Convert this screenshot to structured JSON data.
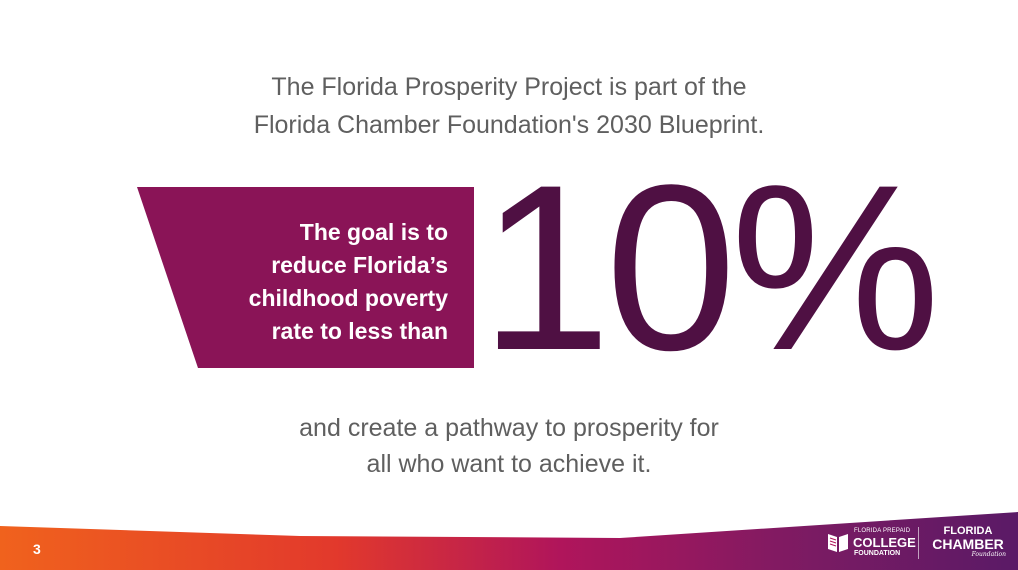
{
  "slide": {
    "intro_lines": [
      "The Florida Prosperity Project is part of the",
      "Florida Chamber Foundation's 2030 Blueprint."
    ],
    "goal_lines": [
      "The goal is to",
      "reduce Florida’s",
      "childhood poverty",
      "rate to less than"
    ],
    "big_number": "10%",
    "outro_lines": [
      "and create a pathway to prosperity for",
      "all who want to achieve it."
    ],
    "page_number": "3"
  },
  "footer": {
    "logo_prepaid": {
      "small": "FLORIDA PREPAID",
      "big": "COLLEGE",
      "mid": "FOUNDATION"
    },
    "logo_chamber": {
      "line1": "FLORIDA",
      "line2": "CHAMBER",
      "line3": "Foundation"
    }
  },
  "colors": {
    "goal_box": "#8a1457",
    "big_number": "#4f1043",
    "body_text": "#5f5f5f",
    "footer_orange": "#f0621d",
    "footer_magenta": "#b0155b",
    "footer_purple": "#5a1a66"
  }
}
